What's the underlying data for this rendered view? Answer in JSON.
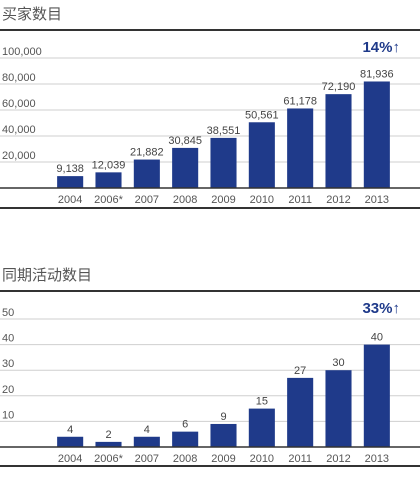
{
  "chart_data": [
    {
      "type": "bar",
      "title": "买家数目",
      "growth": "14%↑",
      "categories": [
        "2004",
        "2006*",
        "2007",
        "2008",
        "2009",
        "2010",
        "2011",
        "2012",
        "2013"
      ],
      "values": [
        9138,
        12039,
        21882,
        30845,
        38551,
        50561,
        61178,
        72190,
        81936
      ],
      "value_labels": [
        "9,138",
        "12,039",
        "21,882",
        "30,845",
        "38,551",
        "50,561",
        "61,178",
        "72,190",
        "81,936"
      ],
      "yticks": [
        20000,
        40000,
        60000,
        80000,
        100000
      ],
      "ytick_labels": [
        "20,000",
        "40,000",
        "60,000",
        "80,000",
        "100,000"
      ],
      "ylim": [
        0,
        100000
      ],
      "grid": true,
      "bar_color": "#1f3a8a"
    },
    {
      "type": "bar",
      "title": "同期活动数目",
      "growth": "33%↑",
      "categories": [
        "2004",
        "2006*",
        "2007",
        "2008",
        "2009",
        "2010",
        "2011",
        "2012",
        "2013"
      ],
      "values": [
        4,
        2,
        4,
        6,
        9,
        15,
        27,
        30,
        40
      ],
      "value_labels": [
        "4",
        "2",
        "4",
        "6",
        "9",
        "15",
        "27",
        "30",
        "40"
      ],
      "yticks": [
        10,
        20,
        30,
        40,
        50
      ],
      "ytick_labels": [
        "10",
        "20",
        "30",
        "40",
        "50"
      ],
      "ylim": [
        0,
        50
      ],
      "grid": true,
      "bar_color": "#1f3a8a"
    }
  ]
}
